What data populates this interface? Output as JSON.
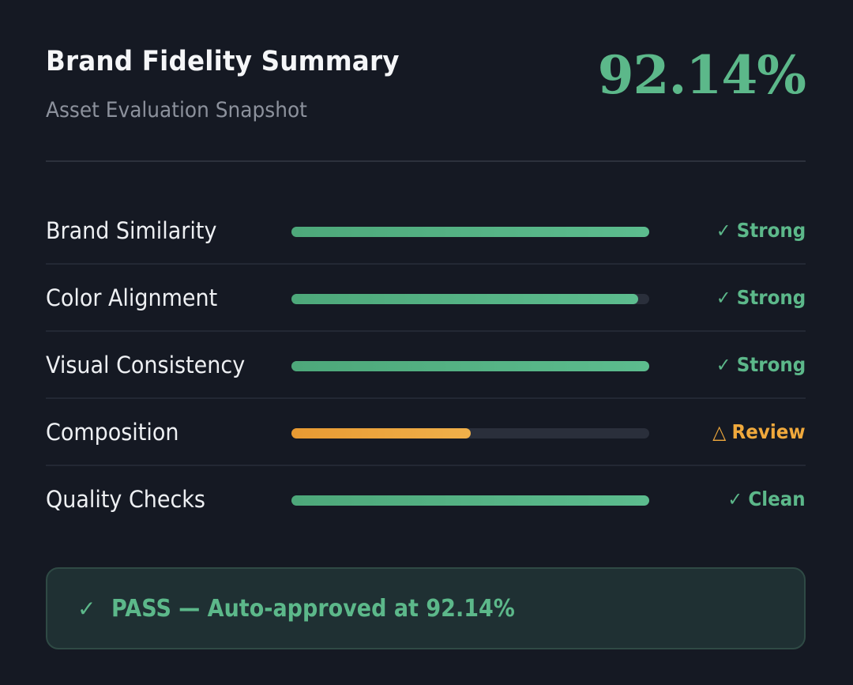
{
  "header": {
    "title": "Brand Fidelity Summary",
    "subtitle": "Asset Evaluation Snapshot",
    "score": "92.14%"
  },
  "metrics": [
    {
      "label": "Brand Similarity",
      "fill_percent": 100,
      "status": "Strong",
      "status_icon": "✓",
      "level": "good"
    },
    {
      "label": "Color Alignment",
      "fill_percent": 97,
      "status": "Strong",
      "status_icon": "✓",
      "level": "good"
    },
    {
      "label": "Visual Consistency",
      "fill_percent": 100,
      "status": "Strong",
      "status_icon": "✓",
      "level": "good"
    },
    {
      "label": "Composition",
      "fill_percent": 50,
      "status": "Review",
      "status_icon": "△",
      "level": "warn"
    },
    {
      "label": "Quality Checks",
      "fill_percent": 100,
      "status": "Clean",
      "status_icon": "✓",
      "level": "good"
    }
  ],
  "banner": {
    "icon": "✓",
    "text": "PASS — Auto-approved at 92.14%"
  },
  "colors": {
    "background": "#151923",
    "accent_green": "#5cb88a",
    "warning_amber": "#f0a93c",
    "track": "#2a2f3b",
    "banner_bg": "#1f3033"
  }
}
